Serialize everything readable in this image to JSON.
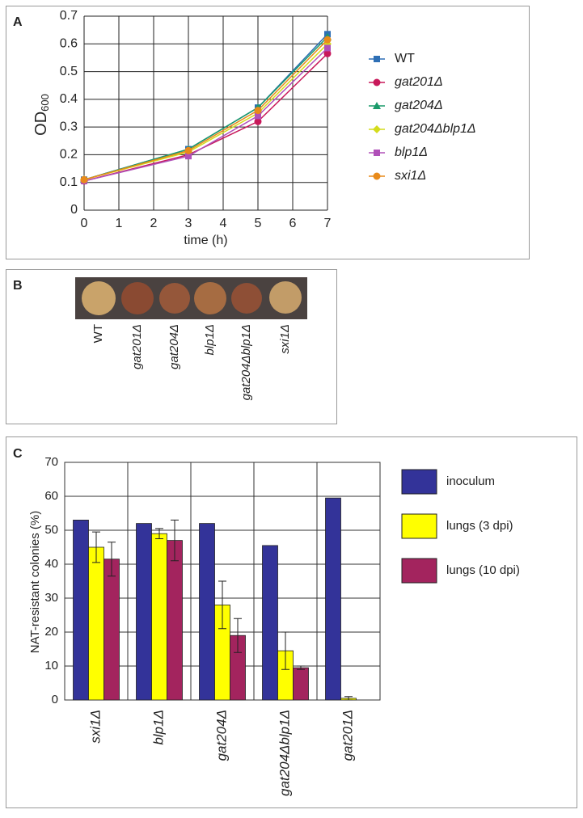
{
  "chart_data": [
    {
      "type": "line",
      "panel_label": "A",
      "x_label": "time (h)",
      "y_label": {
        "text": "OD",
        "subscript": "600"
      },
      "x": [
        0,
        3,
        5,
        7
      ],
      "xlim": [
        0,
        7
      ],
      "xticks": [
        0,
        1,
        2,
        3,
        4,
        5,
        6,
        7
      ],
      "ylim": [
        0,
        0.7
      ],
      "yticks": [
        0,
        0.1,
        0.2,
        0.3,
        0.4,
        0.5,
        0.6,
        0.7
      ],
      "grid": true,
      "series": [
        {
          "name": "WT",
          "color": "#2e6fb5",
          "marker": "square",
          "values": [
            0.11,
            0.22,
            0.37,
            0.635
          ]
        },
        {
          "name": "gat201Δ",
          "color": "#c8195a",
          "marker": "circle",
          "values": [
            0.105,
            0.2,
            0.32,
            0.565
          ]
        },
        {
          "name": "gat204Δ",
          "color": "#1a9a6a",
          "marker": "triangle",
          "values": [
            0.11,
            0.22,
            0.37,
            0.625
          ]
        },
        {
          "name": "gat204Δblp1Δ",
          "color": "#d4dc1c",
          "marker": "diamond",
          "values": [
            0.11,
            0.21,
            0.35,
            0.6
          ]
        },
        {
          "name": "blp1Δ",
          "color": "#b050b8",
          "marker": "square",
          "values": [
            0.105,
            0.195,
            0.34,
            0.585
          ]
        },
        {
          "name": "sxi1Δ",
          "color": "#e88a1a",
          "marker": "circle",
          "values": [
            0.11,
            0.215,
            0.36,
            0.615
          ]
        }
      ]
    },
    {
      "type": "bar",
      "panel_label": "C",
      "y_label": "NAT-resistant colonies (%)",
      "categories": [
        "sxi1Δ",
        "blp1Δ",
        "gat204Δ",
        "gat204Δblp1Δ",
        "gat201Δ"
      ],
      "ylim": [
        0,
        70
      ],
      "yticks": [
        0,
        10,
        20,
        30,
        40,
        50,
        60,
        70
      ],
      "grid": true,
      "series": [
        {
          "name": "inoculum",
          "color": "#333399",
          "values": [
            53,
            52,
            52,
            45.5,
            59.5
          ]
        },
        {
          "name": "lungs (3 dpi)",
          "color": "#ffff00",
          "values": [
            45,
            49,
            28,
            14.5,
            0.5
          ],
          "errors": [
            4.5,
            1.5,
            7,
            5.5,
            0.5
          ]
        },
        {
          "name": "lungs (10 dpi)",
          "color": "#a3245e",
          "values": [
            41.5,
            47,
            19,
            9.5,
            0
          ],
          "errors": [
            5,
            6,
            5,
            0.5,
            null
          ]
        }
      ]
    }
  ],
  "panel_b": {
    "label": "B",
    "strains": [
      "WT",
      "gat201Δ",
      "gat204Δ",
      "blp1Δ",
      "gat204Δblp1Δ",
      "sxi1Δ"
    ]
  }
}
